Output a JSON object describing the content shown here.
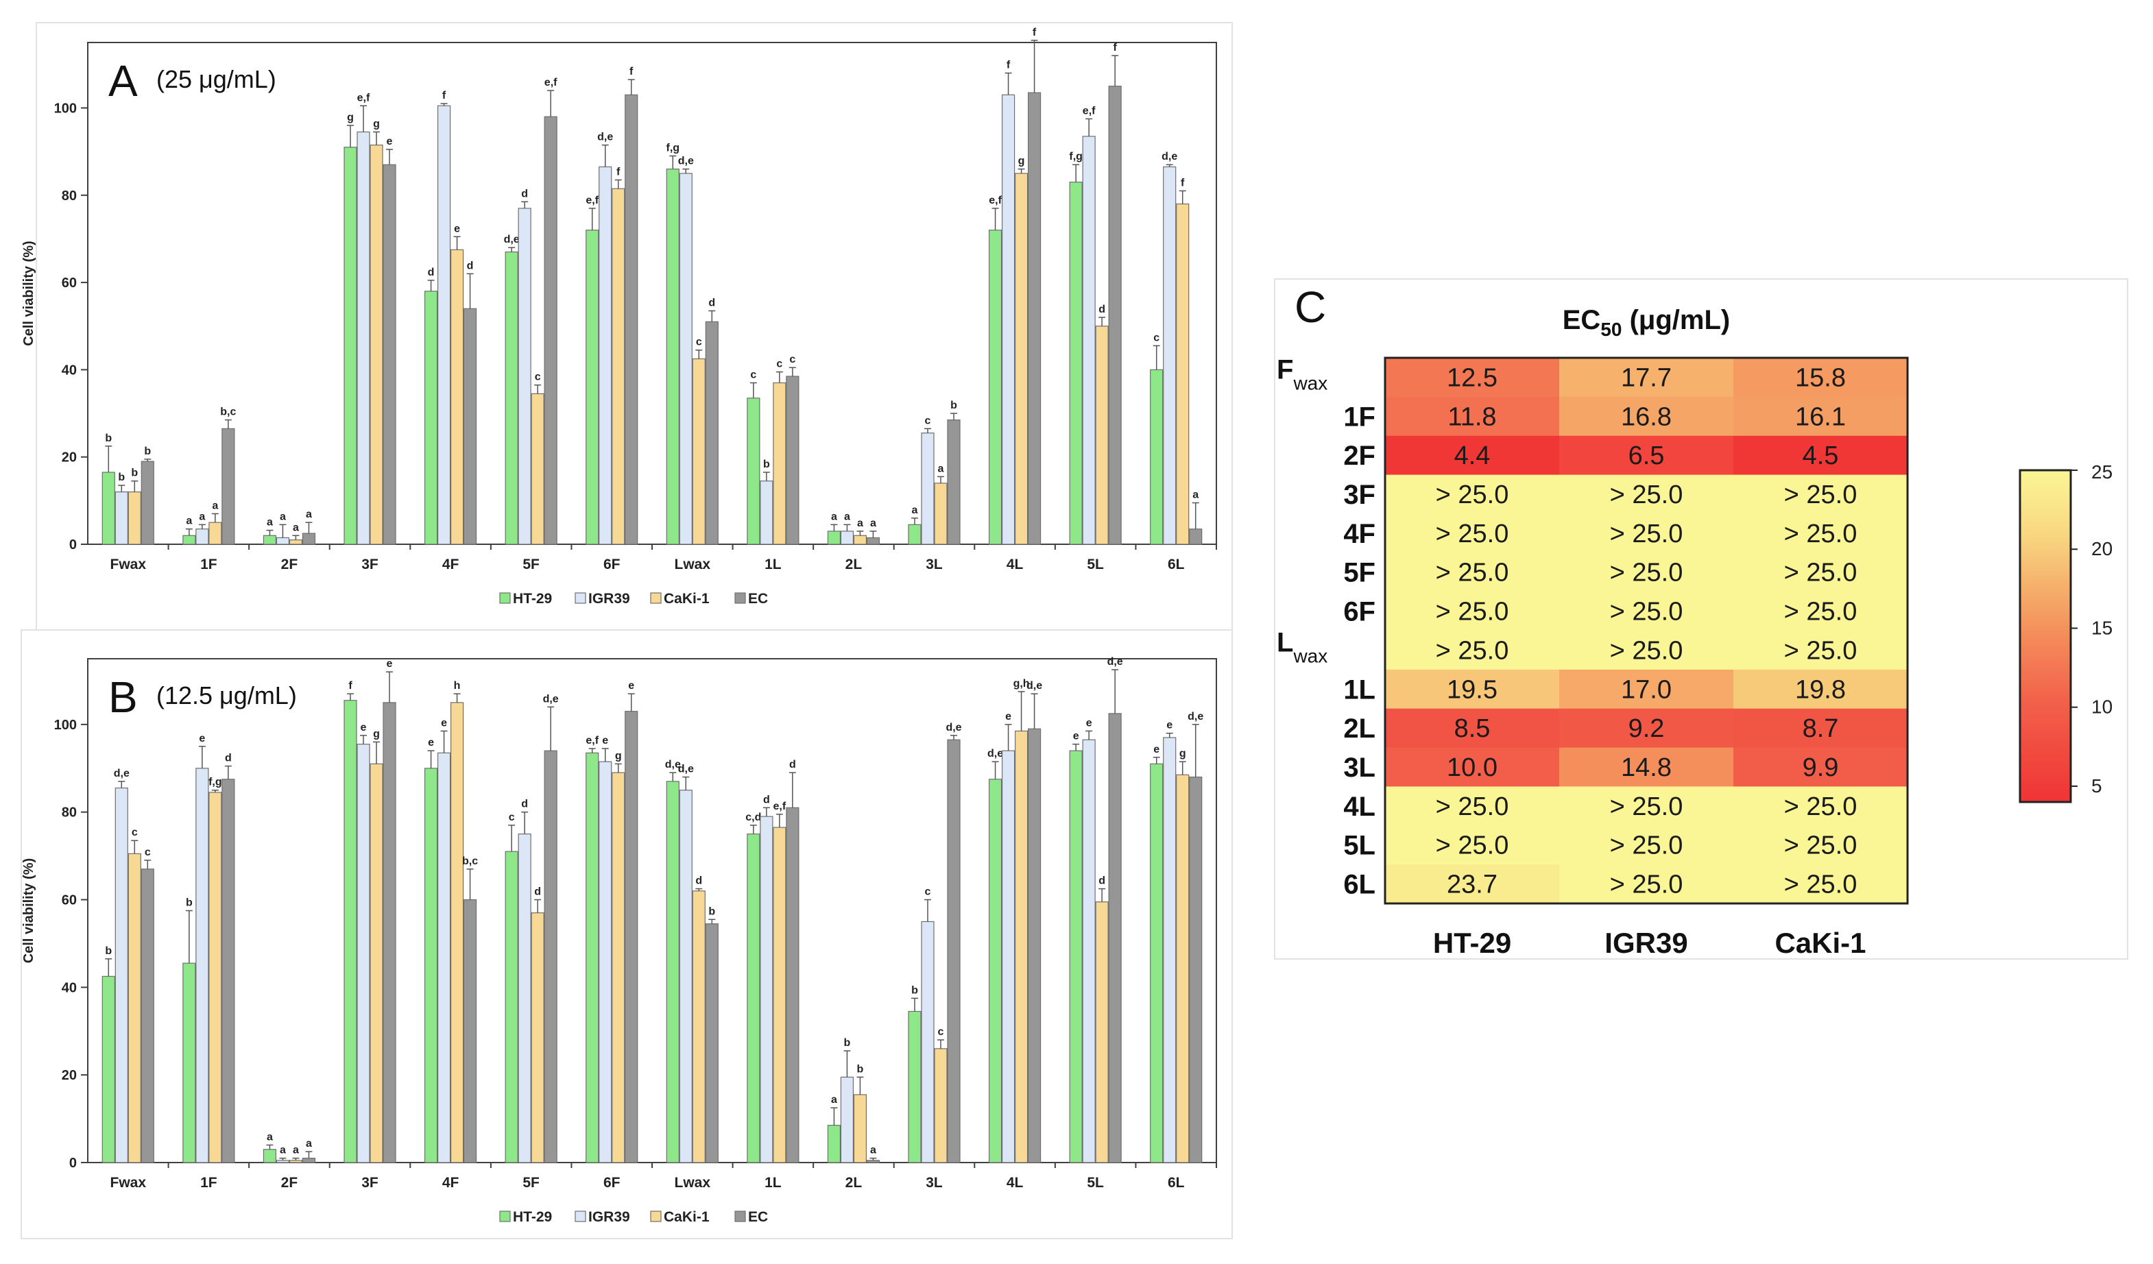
{
  "chart_data": [
    {
      "type": "bar",
      "panel": "A",
      "title": "(25 μg/mL)",
      "ylabel": "Cell viability (%)",
      "xlabel": "",
      "ylim": [
        0,
        115
      ],
      "yticks": [
        0,
        20,
        40,
        60,
        80,
        100
      ],
      "categories": [
        "Fwax",
        "1F",
        "2F",
        "3F",
        "4F",
        "5F",
        "6F",
        "Lwax",
        "1L",
        "2L",
        "3L",
        "4L",
        "5L",
        "6L"
      ],
      "series": [
        {
          "name": "HT-29",
          "color": "#8ee88a",
          "values": [
            16.5,
            2,
            2,
            91,
            58,
            67,
            72,
            86,
            33.5,
            3,
            4.5,
            72,
            83,
            40
          ],
          "errors": [
            6,
            1.5,
            1.2,
            5,
            2.5,
            1,
            5,
            3,
            3.5,
            1.5,
            1.5,
            5,
            4,
            5.5
          ],
          "letters": [
            "b",
            "a",
            "a",
            "g",
            "d",
            "d,e",
            "e,f",
            "f,g",
            "c",
            "a",
            "a",
            "e,f",
            "f,g",
            "c"
          ]
        },
        {
          "name": "IGR39",
          "color": "#dbe7f7",
          "values": [
            12,
            3.5,
            1.5,
            94.5,
            100.5,
            77,
            86.5,
            85,
            14.5,
            3,
            25.5,
            103,
            93.5,
            86.5
          ],
          "errors": [
            1.5,
            1,
            3,
            6,
            0.5,
            1.5,
            5,
            1,
            2,
            1.5,
            1,
            5,
            4,
            0.5
          ],
          "letters": [
            "b",
            "a",
            "a",
            "e,f",
            "f",
            "d",
            "d,e",
            "d,e",
            "b",
            "a",
            "c",
            "f",
            "e,f",
            "d,e"
          ]
        },
        {
          "name": "CaKi-1",
          "color": "#f7d894",
          "values": [
            12,
            5,
            1,
            91.5,
            67.5,
            34.5,
            81.5,
            42.5,
            37,
            2,
            14,
            85,
            50,
            78
          ],
          "errors": [
            2.5,
            2,
            1,
            3,
            3,
            2,
            2,
            2,
            2.5,
            1,
            1.5,
            1,
            2,
            3
          ],
          "letters": [
            "b",
            "a",
            "a",
            "g",
            "e",
            "c",
            "f",
            "c",
            "c",
            "a",
            "a",
            "g",
            "d",
            "f"
          ]
        },
        {
          "name": "EC",
          "color": "#969696",
          "values": [
            19,
            26.5,
            2.5,
            87,
            54,
            98,
            103,
            51,
            38.5,
            1.5,
            28.5,
            103.5,
            105,
            3.5
          ],
          "errors": [
            0.5,
            2,
            2.5,
            3.5,
            8,
            6,
            3.5,
            2.5,
            2,
            1.5,
            1.5,
            12,
            7,
            6
          ],
          "letters": [
            "b",
            "b,c",
            "a",
            "e",
            "d",
            "e,f",
            "f",
            "d",
            "c",
            "a",
            "b",
            "f",
            "f",
            "a"
          ]
        }
      ]
    },
    {
      "type": "bar",
      "panel": "B",
      "title": "(12.5 μg/mL)",
      "ylabel": "Cell viability (%)",
      "xlabel": "",
      "ylim": [
        0,
        115
      ],
      "yticks": [
        0,
        20,
        40,
        60,
        80,
        100
      ],
      "categories": [
        "Fwax",
        "1F",
        "2F",
        "3F",
        "4F",
        "5F",
        "6F",
        "Lwax",
        "1L",
        "2L",
        "3L",
        "4L",
        "5L",
        "6L"
      ],
      "series": [
        {
          "name": "HT-29",
          "color": "#8ee88a",
          "values": [
            42.5,
            45.5,
            3,
            105.5,
            90,
            71,
            93.5,
            87,
            75,
            8.5,
            34.5,
            87.5,
            94,
            91
          ],
          "errors": [
            4,
            12,
            1,
            1.5,
            4,
            6,
            1,
            2,
            2,
            4,
            3,
            4,
            1.5,
            1.5
          ],
          "letters": [
            "b",
            "b",
            "a",
            "f",
            "e",
            "c",
            "e,f",
            "d,e",
            "c,d",
            "a",
            "b",
            "d,e",
            "e",
            "e"
          ]
        },
        {
          "name": "IGR39",
          "color": "#dbe7f7",
          "values": [
            85.5,
            90,
            0.5,
            95.5,
            93.5,
            75,
            91.5,
            85,
            79,
            19.5,
            55,
            94,
            96.5,
            97
          ],
          "errors": [
            1.5,
            5,
            0.5,
            2,
            5,
            5,
            3,
            3,
            2,
            6,
            5,
            6,
            2,
            1
          ],
          "letters": [
            "d,e",
            "e",
            "a",
            "e",
            "e",
            "d",
            "e",
            "d,e",
            "d",
            "b",
            "c",
            "e",
            "e",
            "e"
          ]
        },
        {
          "name": "CaKi-1",
          "color": "#f7d894",
          "values": [
            70.5,
            84.5,
            0.5,
            91,
            105,
            57,
            89,
            62,
            76.5,
            15.5,
            26,
            98.5,
            59.5,
            88.5
          ],
          "errors": [
            3,
            0.5,
            0.5,
            5,
            2,
            3,
            2,
            0.5,
            3,
            4,
            2,
            9,
            3,
            3
          ],
          "letters": [
            "c",
            "f,g",
            "a",
            "g",
            "h",
            "d",
            "g",
            "d",
            "e,f",
            "b",
            "c",
            "g,h",
            "d",
            "g"
          ]
        },
        {
          "name": "EC",
          "color": "#969696",
          "values": [
            67,
            87.5,
            1,
            105,
            60,
            94,
            103,
            54.5,
            81,
            0.5,
            96.5,
            99,
            102.5,
            88
          ],
          "errors": [
            2,
            3,
            1.5,
            7,
            7,
            10,
            4,
            1,
            8,
            0.5,
            1,
            8,
            10,
            12
          ],
          "letters": [
            "c",
            "d",
            "a",
            "e",
            "b,c",
            "d,e",
            "e",
            "b",
            "d",
            "a",
            "d,e",
            "d,e",
            "d,e",
            "d,e"
          ]
        }
      ]
    },
    {
      "type": "heatmap",
      "panel": "C",
      "title": "EC",
      "title_sub": "50",
      "title_rest": " (μg/mL)",
      "rows": [
        {
          "label": "F",
          "sub": "wax",
          "values": [
            12.5,
            17.7,
            15.8
          ],
          "text": [
            "12.5",
            "17.7",
            "15.8"
          ]
        },
        {
          "label": "1F",
          "values": [
            11.8,
            16.8,
            16.1
          ],
          "text": [
            "11.8",
            "16.8",
            "16.1"
          ]
        },
        {
          "label": "2F",
          "values": [
            4.4,
            6.5,
            4.5
          ],
          "text": [
            "4.4",
            "6.5",
            "4.5"
          ]
        },
        {
          "label": "3F",
          "values": [
            25,
            25,
            25
          ],
          "text": [
            "> 25.0",
            "> 25.0",
            "> 25.0"
          ]
        },
        {
          "label": "4F",
          "values": [
            25,
            25,
            25
          ],
          "text": [
            "> 25.0",
            "> 25.0",
            "> 25.0"
          ]
        },
        {
          "label": "5F",
          "values": [
            25,
            25,
            25
          ],
          "text": [
            "> 25.0",
            "> 25.0",
            "> 25.0"
          ]
        },
        {
          "label": "6F",
          "values": [
            25,
            25,
            25
          ],
          "text": [
            "> 25.0",
            "> 25.0",
            "> 25.0"
          ]
        },
        {
          "label": "L",
          "sub": "wax",
          "values": [
            25,
            25,
            25
          ],
          "text": [
            "> 25.0",
            "> 25.0",
            "> 25.0"
          ]
        },
        {
          "label": "1L",
          "values": [
            19.5,
            17.0,
            19.8
          ],
          "text": [
            "19.5",
            "17.0",
            "19.8"
          ]
        },
        {
          "label": "2L",
          "values": [
            8.5,
            9.2,
            8.7
          ],
          "text": [
            "8.5",
            "9.2",
            "8.7"
          ]
        },
        {
          "label": "3L",
          "values": [
            10.0,
            14.8,
            9.9
          ],
          "text": [
            "10.0",
            "14.8",
            "9.9"
          ]
        },
        {
          "label": "4L",
          "values": [
            25,
            25,
            25
          ],
          "text": [
            "> 25.0",
            "> 25.0",
            "> 25.0"
          ]
        },
        {
          "label": "5L",
          "values": [
            25,
            25,
            25
          ],
          "text": [
            "> 25.0",
            "> 25.0",
            "> 25.0"
          ]
        },
        {
          "label": "6L",
          "values": [
            23.7,
            25,
            25
          ],
          "text": [
            "23.7",
            "> 25.0",
            "> 25.0"
          ]
        }
      ],
      "columns": [
        "HT-29",
        "IGR39",
        "CaKi-1"
      ],
      "colorbar": {
        "min": 4,
        "max": 25,
        "ticks": [
          5,
          10,
          15,
          20,
          25
        ]
      }
    }
  ]
}
